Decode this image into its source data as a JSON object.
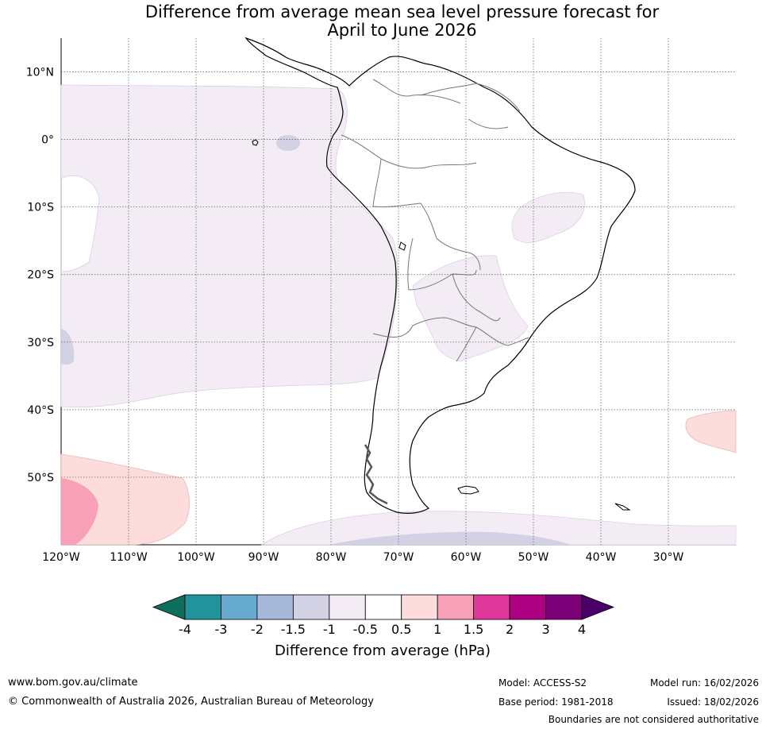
{
  "title": {
    "line1": "Difference from average mean sea level pressure forecast for",
    "line2": "April to June 2026"
  },
  "map": {
    "lat_labels": [
      "10°N",
      "0°",
      "10°S",
      "20°S",
      "30°S",
      "40°S",
      "50°S"
    ],
    "lon_labels": [
      "120°W",
      "110°W",
      "100°W",
      "90°W",
      "80°W",
      "70°W",
      "60°W",
      "50°W",
      "40°W",
      "30°W"
    ],
    "lat_values": [
      10,
      0,
      -10,
      -20,
      -30,
      -40,
      -50
    ],
    "lon_values": [
      -120,
      -110,
      -100,
      -90,
      -80,
      -70,
      -60,
      -50,
      -40,
      -30
    ],
    "extent": {
      "lon_min": -120,
      "lon_max": -20,
      "lat_min": -60,
      "lat_max": 15
    },
    "grid": true
  },
  "legend": {
    "title": "Difference from average (hPa)",
    "tick_labels": [
      "-4",
      "-3",
      "-2",
      "-1.5",
      "-1",
      "-0.5",
      "0.5",
      "1",
      "1.5",
      "2",
      "3",
      "4"
    ],
    "colors": [
      "#0e6f5c",
      "#20939b",
      "#67aad0",
      "#a7b9da",
      "#d2d2e4",
      "#f3ecf5",
      "#ffffff",
      "#fddcdc",
      "#f8a0b7",
      "#e0379a",
      "#ae0082",
      "#7c0078",
      "#4b0068"
    ]
  },
  "footer": {
    "website": "www.bom.gov.au/climate",
    "copyright": "© Commonwealth of Australia 2026, Australian Bureau of Meteorology",
    "model": "Model: ACCESS-S2",
    "base_period": "Base period: 1981-2018",
    "model_run": "Model run: 16/02/2026",
    "issued": "Issued: 18/02/2026",
    "disclaimer": "Boundaries are not considered authoritative"
  }
}
